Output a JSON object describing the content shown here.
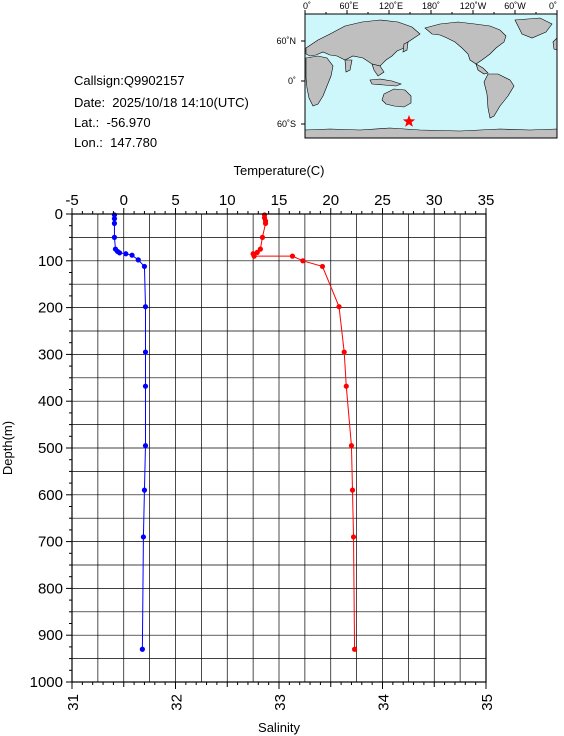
{
  "station": {
    "callsign": "Callsign:Q9902157",
    "date": "Date:  2025/10/18 14:10(UTC)",
    "lat": "Lat.:  -56.970",
    "lon": "Lon.:  147.780"
  },
  "map": {
    "top_labels": [
      "0˚",
      "60˚E",
      "120˚E",
      "180˚",
      "120˚W",
      "60˚W",
      "0˚"
    ],
    "left_labels": [
      "60˚N",
      "0˚",
      "60˚S"
    ],
    "colors": {
      "ocean": "#cdf7fb",
      "land": "#bfbfbf",
      "marker": "#ff0000"
    },
    "marker_icon": "star-icon"
  },
  "chart_data": {
    "type": "line",
    "top_axis_label": "Temperature(C)",
    "bottom_axis_label": "Salinity",
    "ylabel": "Depth(m)",
    "top_ticks": [
      "-5",
      "0",
      "5",
      "10",
      "15",
      "20",
      "25",
      "30",
      "35"
    ],
    "bottom_ticks": [
      "31",
      "32",
      "33",
      "34",
      "35"
    ],
    "y_ticks": [
      "0",
      "100",
      "200",
      "300",
      "400",
      "500",
      "600",
      "700",
      "800",
      "900",
      "1000"
    ],
    "temperature_range": [
      -5,
      35
    ],
    "salinity_range": [
      31,
      35
    ],
    "depth_range": [
      0,
      1000
    ],
    "y_inverted": true,
    "grid": true,
    "series": [
      {
        "name": "Temperature",
        "axis": "top",
        "color": "#ff0000",
        "points": [
          [
            13.6,
            2
          ],
          [
            13.6,
            8
          ],
          [
            13.7,
            15
          ],
          [
            13.7,
            20
          ],
          [
            13.4,
            50
          ],
          [
            13.2,
            75
          ],
          [
            12.9,
            82
          ],
          [
            12.5,
            85
          ],
          [
            12.6,
            90
          ],
          [
            16.3,
            90
          ],
          [
            17.3,
            100
          ],
          [
            19.2,
            112
          ],
          [
            20.8,
            198
          ],
          [
            21.3,
            295
          ],
          [
            21.5,
            368
          ],
          [
            22.0,
            495
          ],
          [
            22.1,
            590
          ],
          [
            22.2,
            690
          ],
          [
            22.3,
            930
          ]
        ]
      },
      {
        "name": "Salinity",
        "axis": "bottom",
        "color": "#0000ff",
        "points": [
          [
            31.41,
            2
          ],
          [
            31.41,
            10
          ],
          [
            31.41,
            20
          ],
          [
            31.41,
            50
          ],
          [
            31.42,
            75
          ],
          [
            31.44,
            80
          ],
          [
            31.46,
            83
          ],
          [
            31.52,
            85
          ],
          [
            31.58,
            88
          ],
          [
            31.64,
            98
          ],
          [
            31.7,
            112
          ],
          [
            31.71,
            198
          ],
          [
            31.71,
            295
          ],
          [
            31.71,
            368
          ],
          [
            31.71,
            495
          ],
          [
            31.7,
            590
          ],
          [
            31.69,
            690
          ],
          [
            31.68,
            930
          ]
        ]
      }
    ]
  }
}
